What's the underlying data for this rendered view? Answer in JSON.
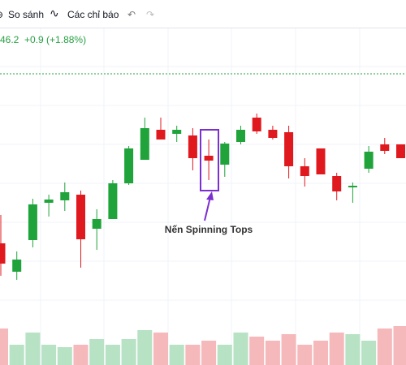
{
  "toolbar": {
    "compare": "So sánh",
    "indicators": "Các chỉ báo"
  },
  "quote": {
    "price": "46.2",
    "change": "+0.9 (+1.88%)"
  },
  "chart_data": {
    "type": "candlestick",
    "annotation": "Nến Spinning Tops",
    "up_color": "#1fa33a",
    "down_color": "#e0191f",
    "up_volume_color": "#b7e2c4",
    "down_volume_color": "#f5b8bb",
    "ylim": [
      0,
      42
    ],
    "open": [
      15,
      11.5,
      15.4,
      20,
      20.3,
      21,
      16.8,
      18,
      22.4,
      25.3,
      29,
      28.5,
      28.3,
      25.8,
      24.7,
      27.5,
      30.5,
      29,
      28.7,
      24.5,
      26.7,
      23.3,
      21.9,
      24.2,
      27.2,
      27.2
    ],
    "high": [
      18.5,
      14,
      20.5,
      21,
      22.5,
      21.5,
      19.2,
      22.8,
      27,
      30.5,
      30.5,
      29.5,
      29.2,
      27.8,
      27.5,
      29.5,
      31,
      29.5,
      29.5,
      25.5,
      26.7,
      23.7,
      22.5,
      27,
      28,
      27.2
    ],
    "low": [
      11,
      10.5,
      14.5,
      18.3,
      19,
      12,
      14.2,
      18,
      22.2,
      25.3,
      27.8,
      27.5,
      24,
      22.8,
      23.2,
      27.2,
      28.5,
      27.8,
      23,
      22,
      23.5,
      20.3,
      20,
      23.7,
      26,
      25.5
    ],
    "close": [
      12.5,
      13,
      19.8,
      20.4,
      21.3,
      15.5,
      18,
      22.4,
      26.7,
      29.2,
      27.8,
      29,
      25.5,
      25.2,
      27.3,
      29,
      28.8,
      28,
      24.5,
      23.3,
      23.5,
      21.4,
      22.1,
      26.3,
      26.4,
      25.5
    ],
    "volume": [
      4.5,
      2.5,
      4,
      2.5,
      2.2,
      2.5,
      3.2,
      2.5,
      3.2,
      4.3,
      4,
      2.5,
      2.5,
      3,
      2.5,
      4,
      3.5,
      3,
      3.8,
      2.5,
      3,
      4,
      3.8,
      3,
      4.5,
      4.8
    ]
  }
}
